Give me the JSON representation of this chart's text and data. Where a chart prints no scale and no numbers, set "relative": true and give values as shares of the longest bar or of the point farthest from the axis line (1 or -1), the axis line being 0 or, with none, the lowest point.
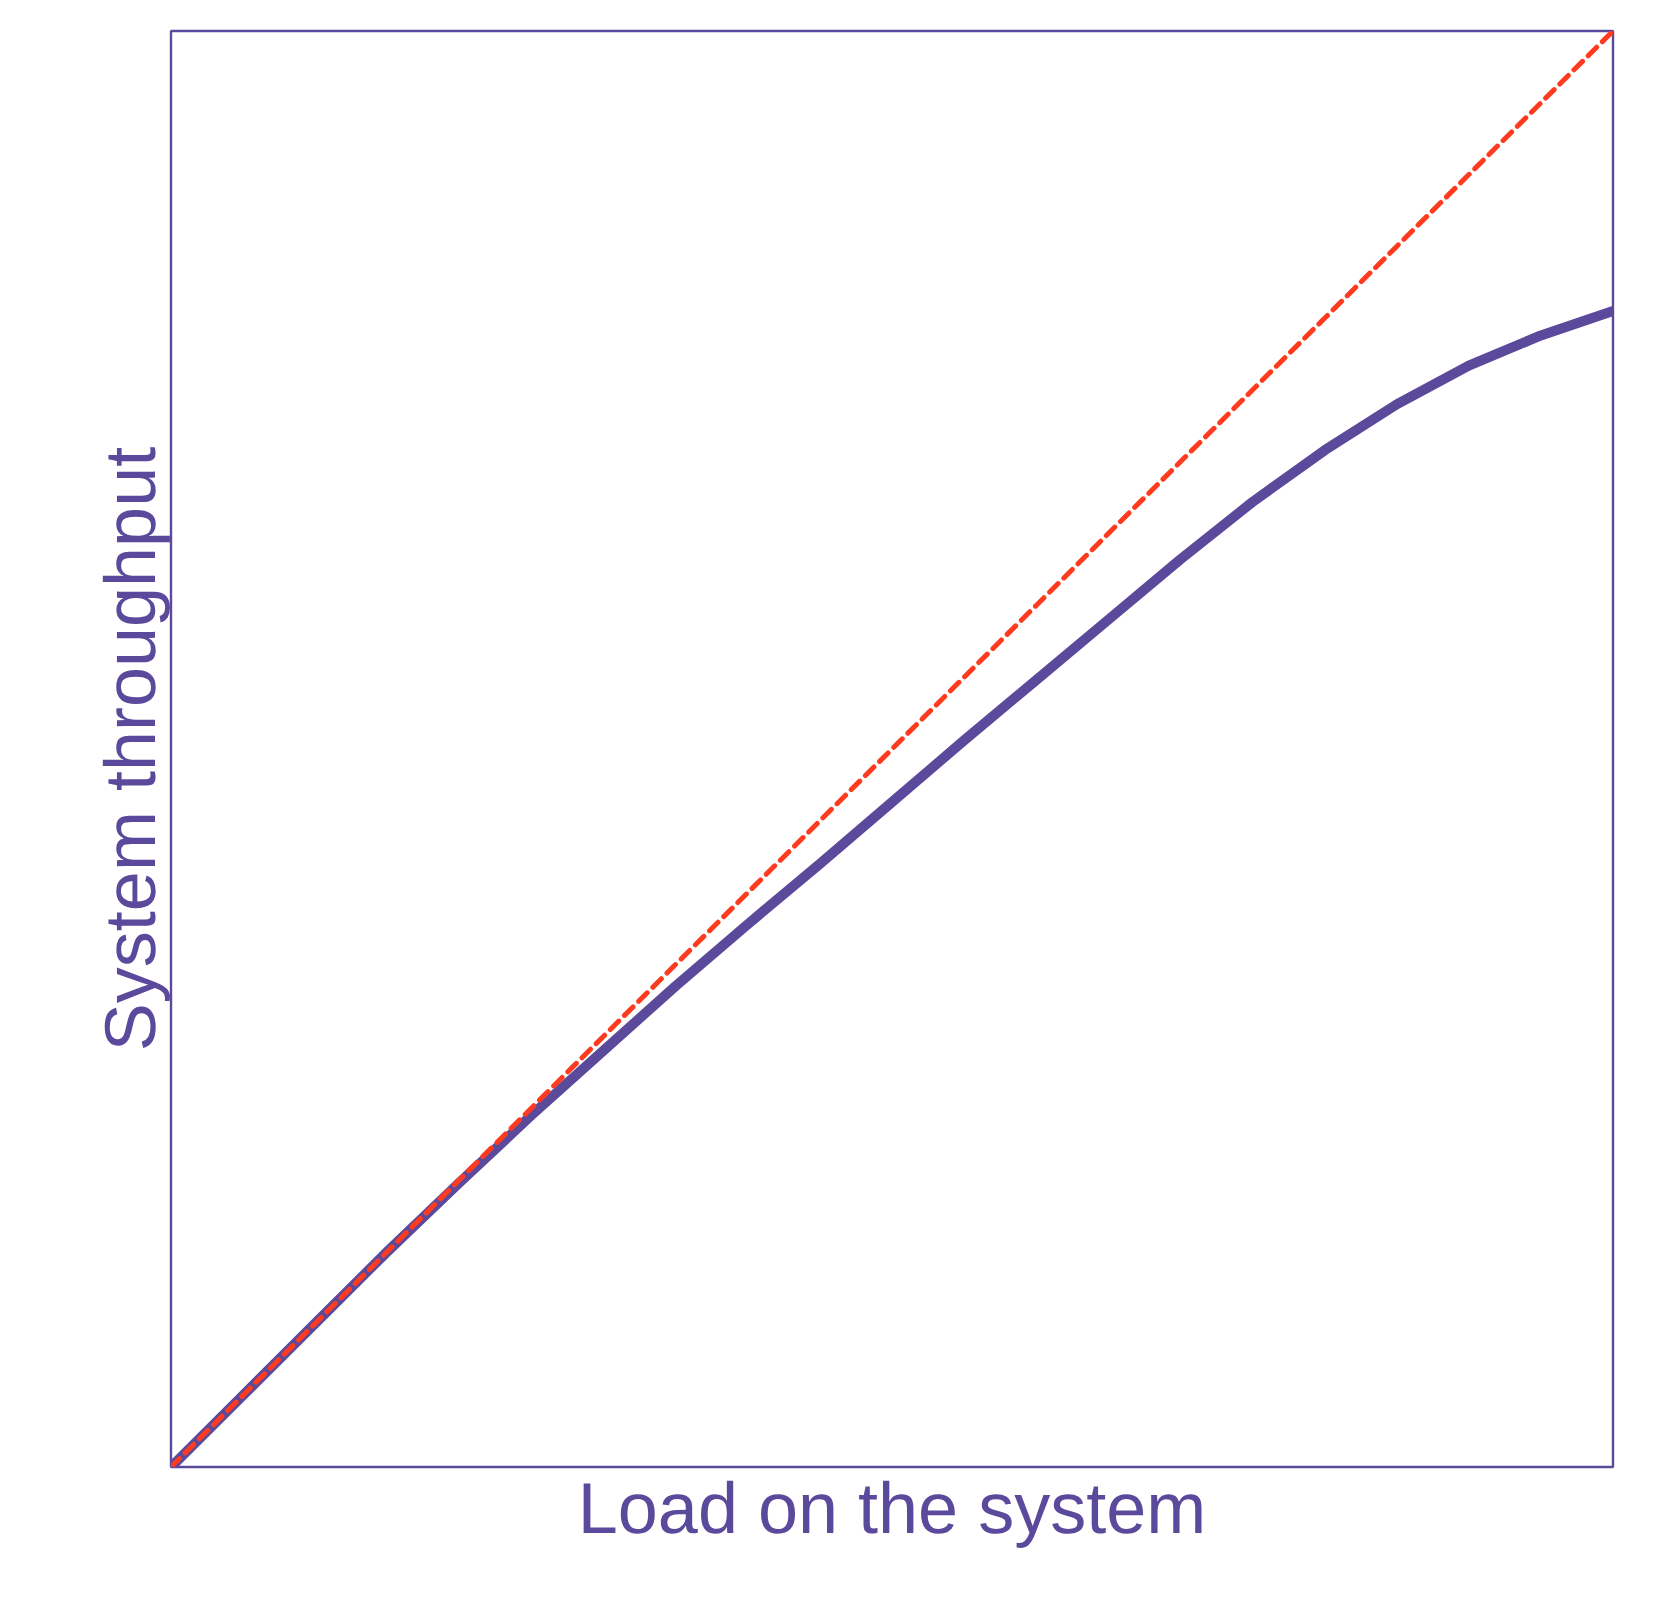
{
  "chart_data": {
    "type": "line",
    "xlabel": "Load on the system",
    "ylabel": "System throughput",
    "relative": true,
    "categories": [
      null,
      null,
      null,
      null,
      null,
      null,
      null,
      null,
      null,
      null,
      null,
      null,
      null,
      null,
      null,
      null,
      null,
      null,
      null,
      null,
      null
    ],
    "series": [
      {
        "color": "#ff3b1f",
        "line_style": "dashed",
        "values": [
          0,
          0.05,
          0.1,
          0.15,
          0.2,
          0.25,
          0.3,
          0.35,
          0.4,
          0.45,
          0.5,
          0.55,
          0.6,
          0.65,
          0.7,
          0.75,
          0.8,
          0.85,
          0.9,
          0.95,
          1
        ]
      },
      {
        "color": "#5b4a9b",
        "values": [
          0,
          0.05,
          0.1,
          0.15,
          0.198,
          0.245,
          0.29,
          0.335,
          0.378,
          0.42,
          0.463,
          0.506,
          0.548,
          0.59,
          0.632,
          0.672,
          0.708,
          0.74,
          0.767,
          0.788,
          0.805
        ]
      }
    ]
  }
}
